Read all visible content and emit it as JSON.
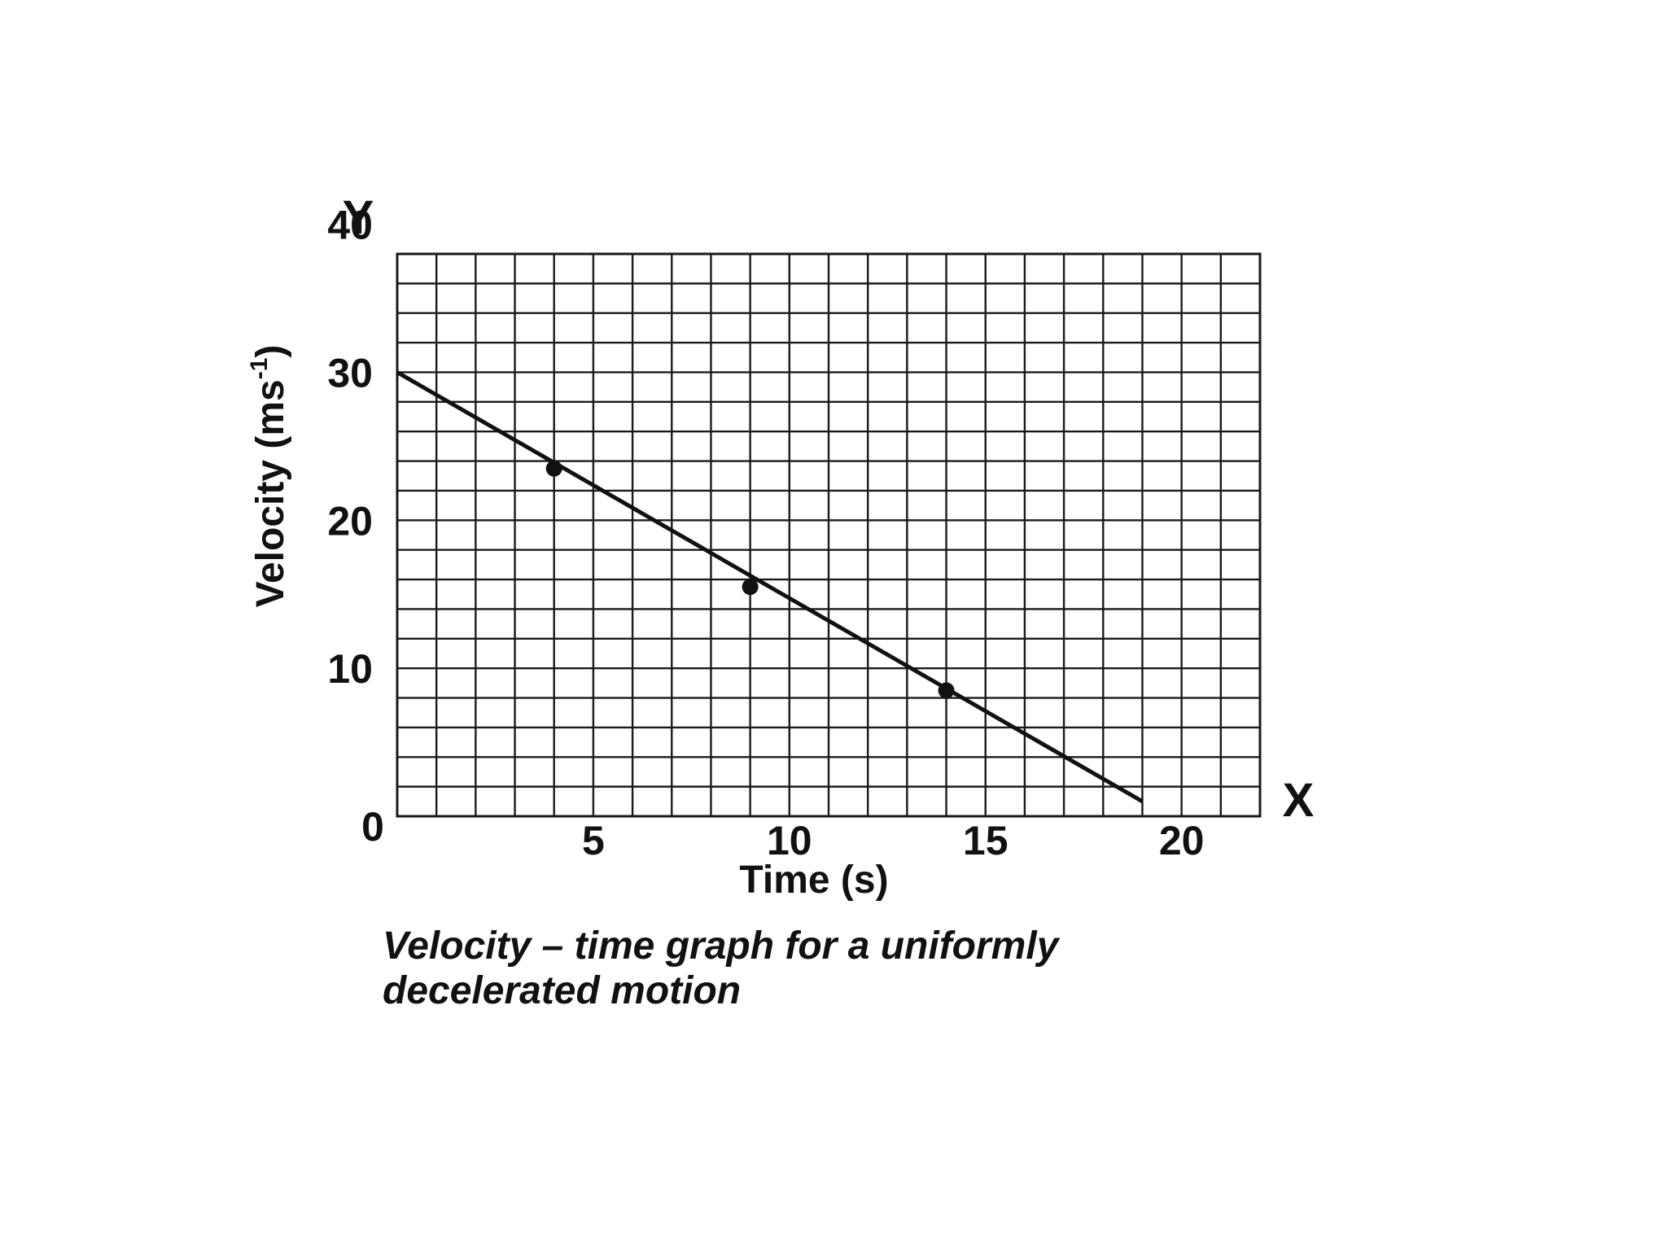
{
  "chart_data": {
    "type": "line",
    "x_axis_letter": "X",
    "y_axis_letter": "Y",
    "xlabel": "Time (s)",
    "ylabel": "Velocity (ms",
    "ylabel_superscript": "-1",
    "ylabel_close": ")",
    "origin_label": "0",
    "x_ticks": [
      5,
      10,
      15,
      20
    ],
    "y_ticks": [
      10,
      20,
      30,
      40
    ],
    "xlim": [
      0,
      22
    ],
    "ylim": [
      0,
      38
    ],
    "x_minor_step": 1,
    "y_minor_step": 2,
    "grid": true,
    "series": [
      {
        "line": {
          "x": [
            0,
            19
          ],
          "y": [
            30,
            1
          ]
        },
        "points": {
          "x": [
            4,
            9,
            14
          ],
          "y": [
            23.5,
            15.5,
            8.5
          ]
        }
      }
    ],
    "caption_line1": "Velocity – time graph for a uniformly",
    "caption_line2": "decelerated motion"
  }
}
